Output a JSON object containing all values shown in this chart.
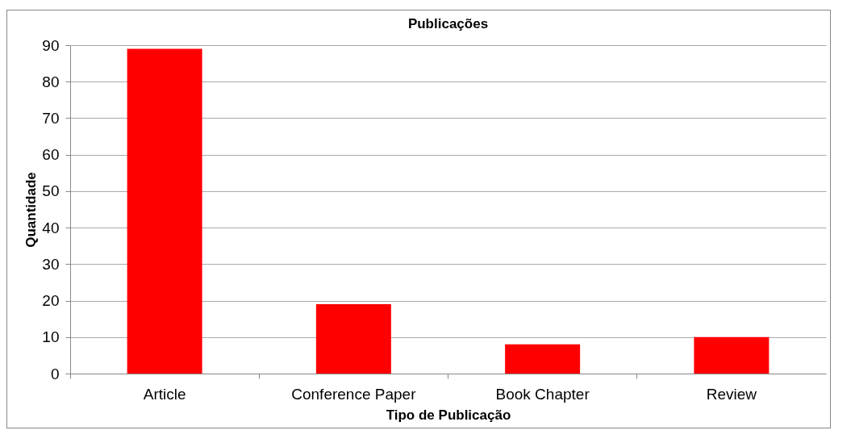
{
  "chart_data": {
    "type": "bar",
    "title": "Publicações",
    "xlabel": "Tipo de Publicação",
    "ylabel": "Quantidade",
    "categories": [
      "Article",
      "Conference Paper",
      "Book Chapter",
      "Review"
    ],
    "values": [
      89,
      19,
      8,
      10
    ],
    "color": "#ff0000",
    "ylim": [
      0,
      90
    ],
    "yticks": [
      0,
      10,
      20,
      30,
      40,
      50,
      60,
      70,
      80,
      90
    ],
    "grid": "y"
  }
}
